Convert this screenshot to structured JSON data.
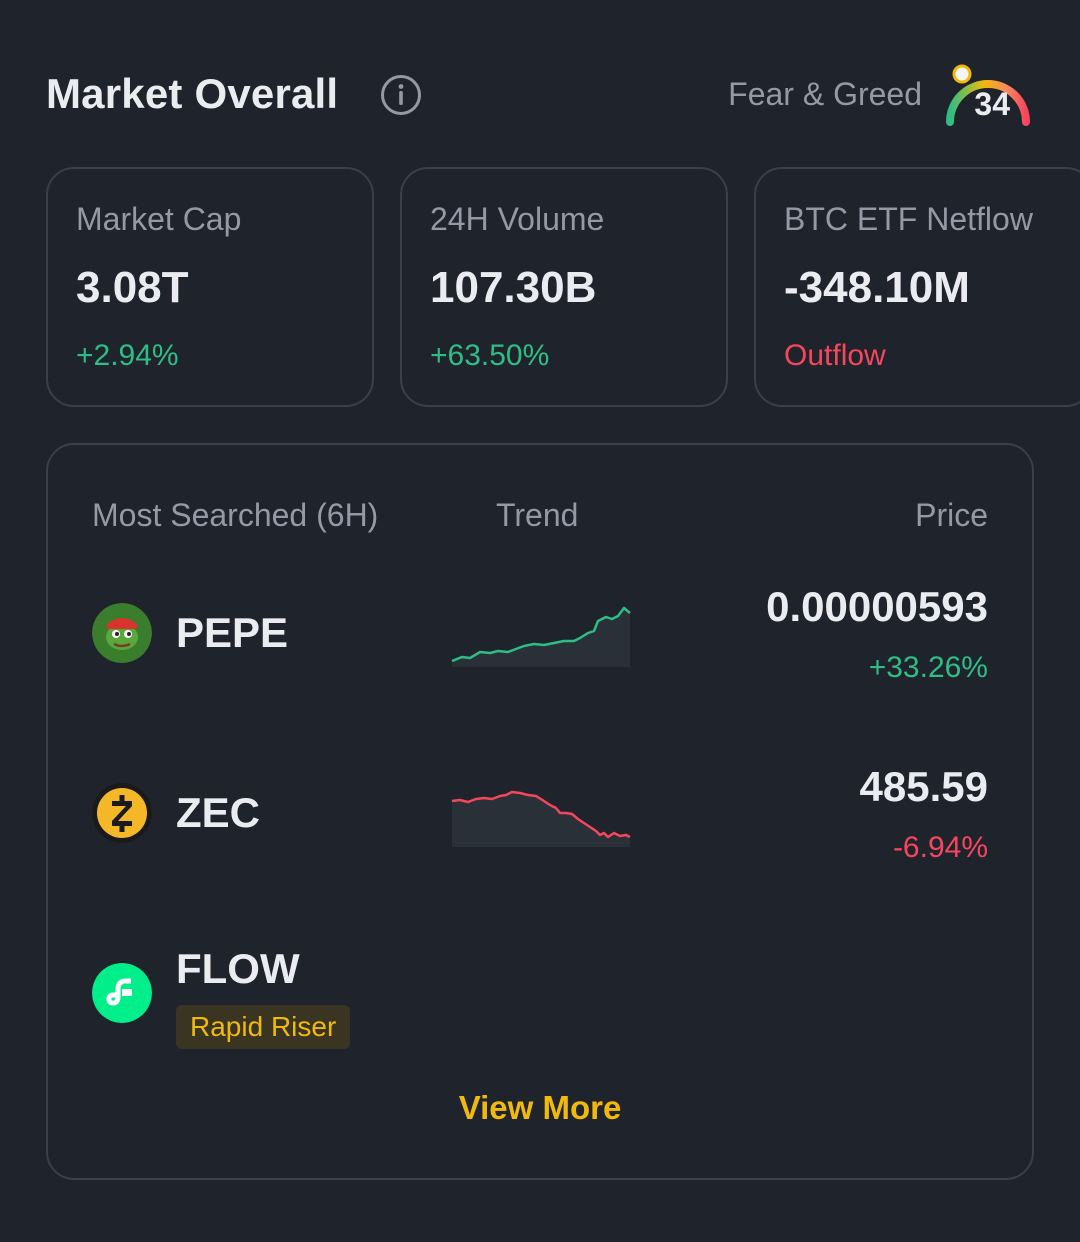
{
  "header": {
    "title": "Market Overall",
    "fear_greed_label": "Fear & Greed",
    "fear_greed_value": "34"
  },
  "stats": [
    {
      "label": "Market Cap",
      "value": "3.08T",
      "change": "+2.94%",
      "direction": "up"
    },
    {
      "label": "24H Volume",
      "value": "107.30B",
      "change": "+63.50%",
      "direction": "up"
    },
    {
      "label": "BTC ETF Netflow",
      "value": "-348.10M",
      "change": "Outflow",
      "direction": "down"
    }
  ],
  "most_searched": {
    "col_name": "Most Searched (6H)",
    "col_trend": "Trend",
    "col_price": "Price",
    "coins": [
      {
        "name": "PEPE",
        "price": "0.00000593",
        "change": "+33.26%",
        "direction": "up",
        "icon": "pepe-frog-icon"
      },
      {
        "name": "ZEC",
        "price": "485.59",
        "change": "-6.94%",
        "direction": "down",
        "icon": "zcash-icon"
      },
      {
        "name": "FLOW",
        "tag": "Rapid Riser",
        "icon": "flow-icon"
      }
    ],
    "view_more": "View More"
  },
  "colors": {
    "background": "#1f232b",
    "up": "#2ebd85",
    "down": "#f6465d",
    "accent": "#f0b90b"
  }
}
